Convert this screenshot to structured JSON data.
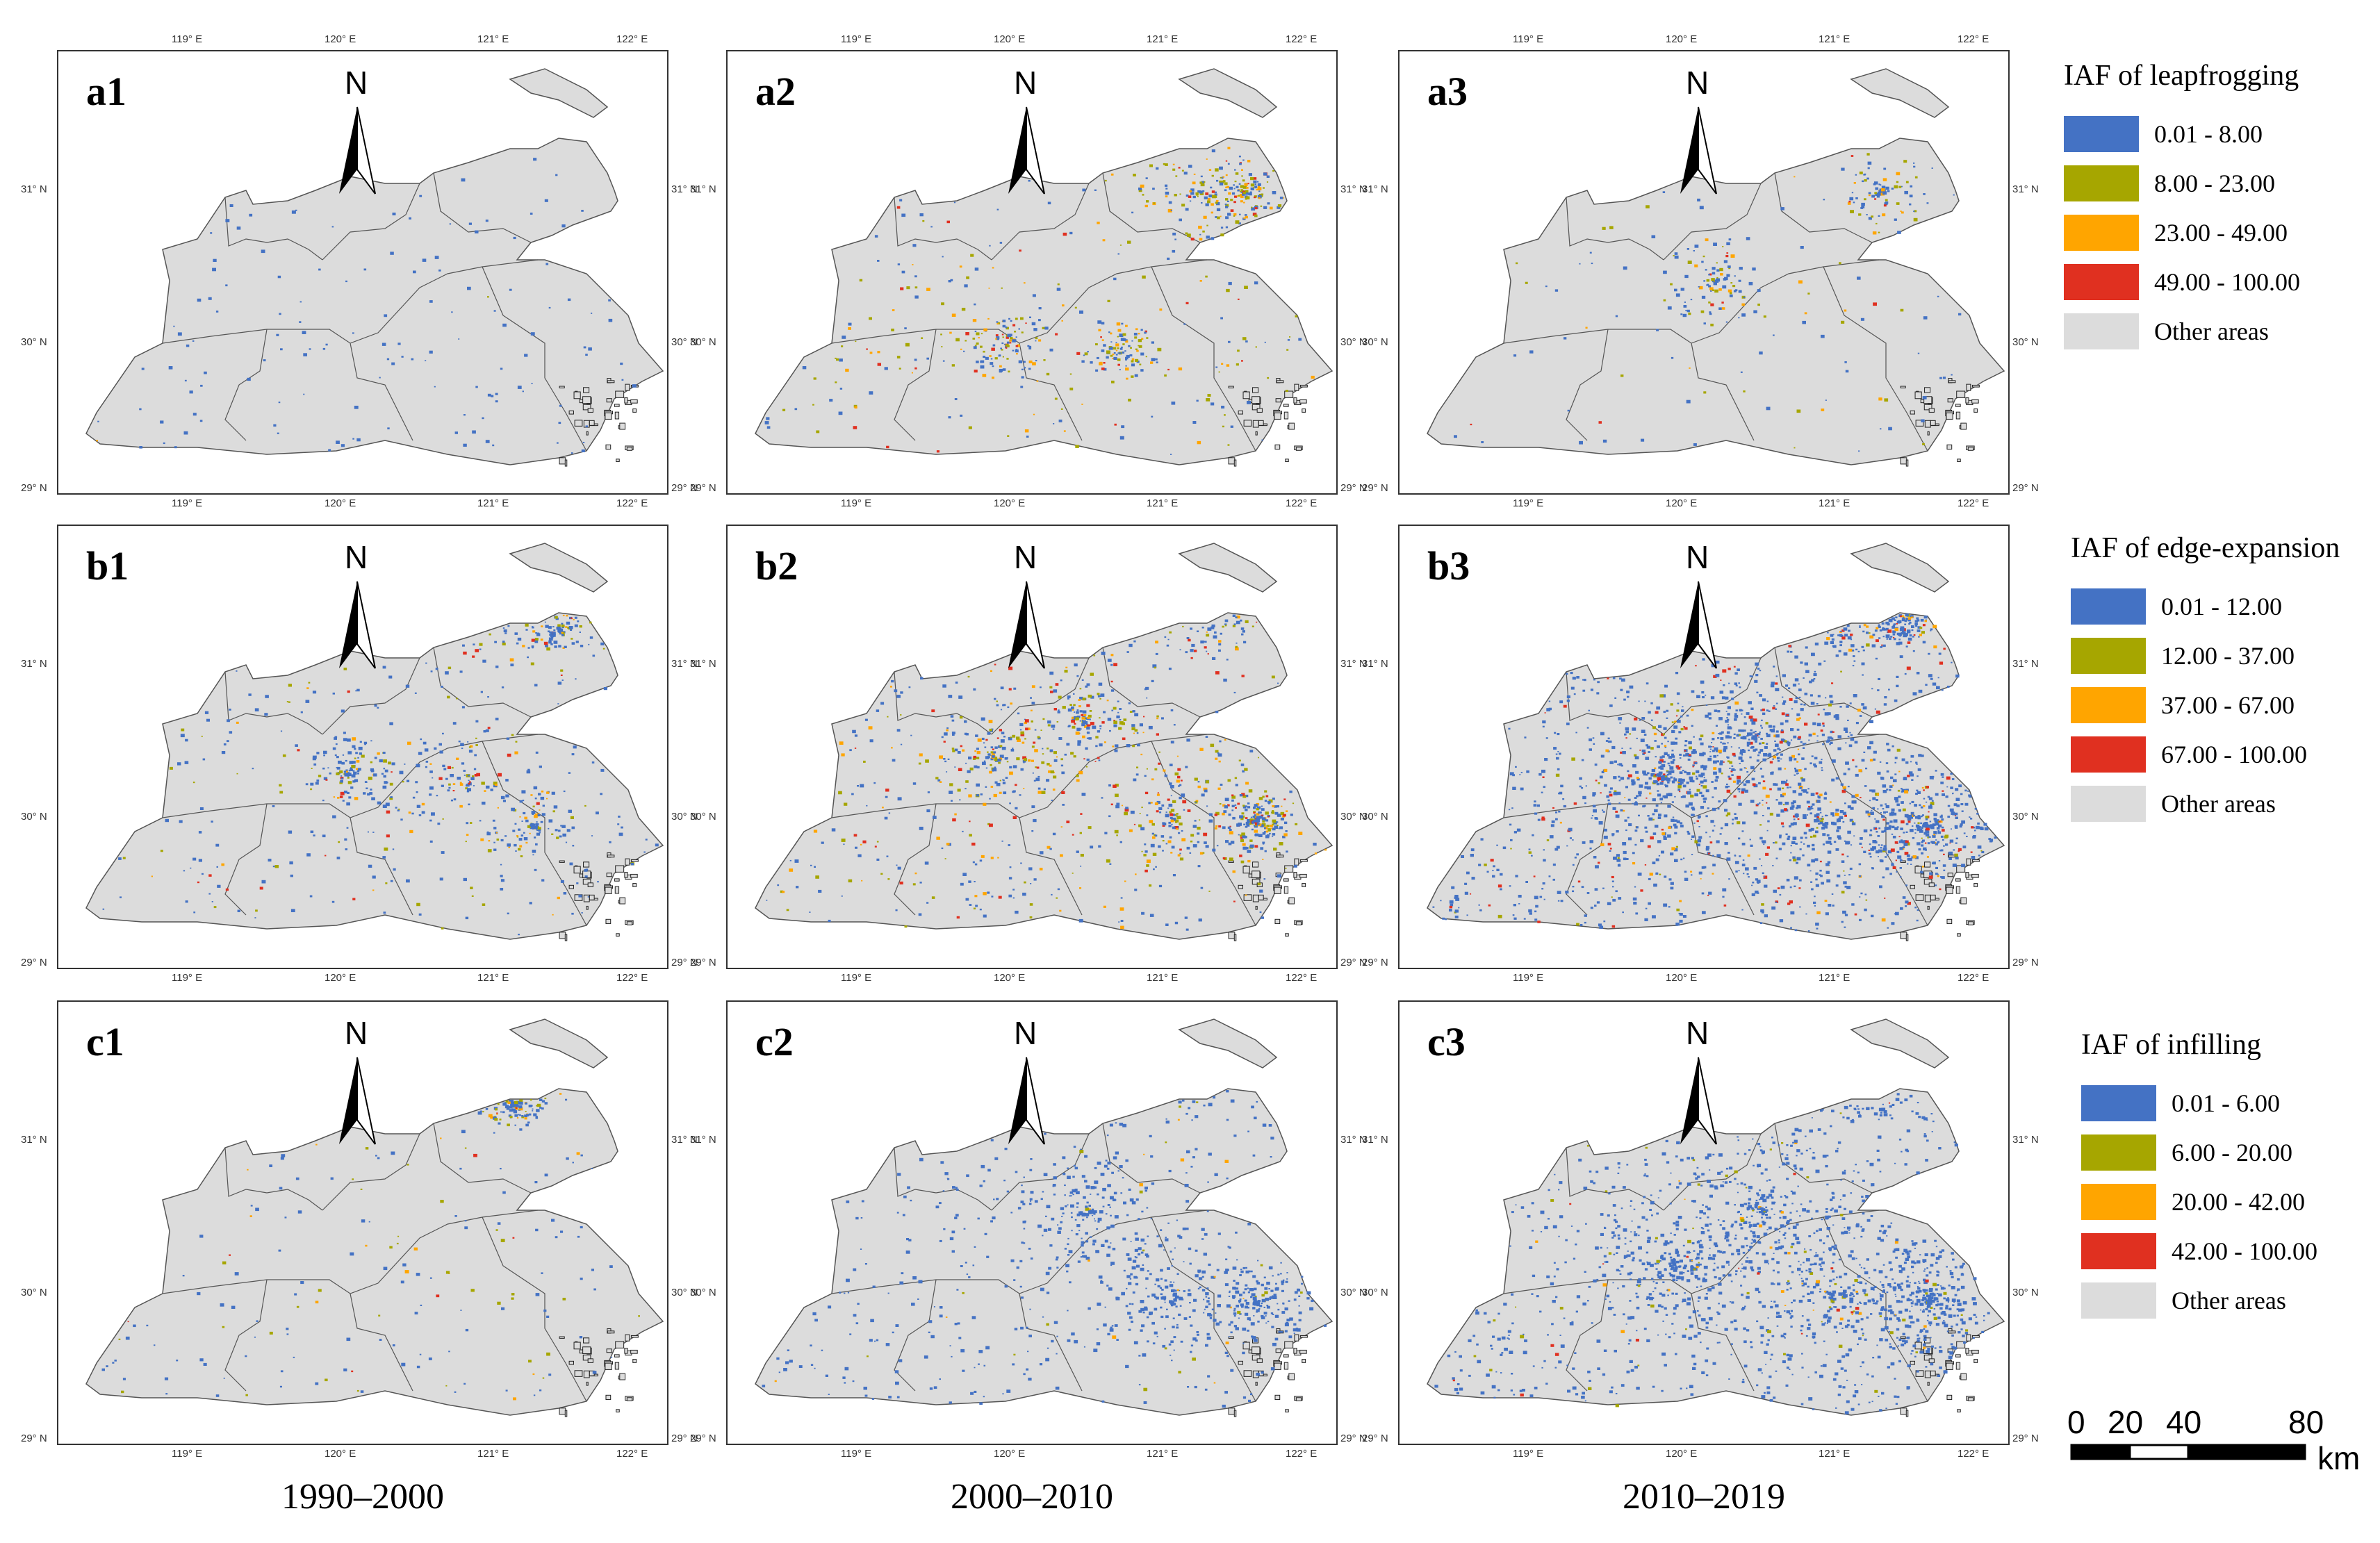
{
  "panels": [
    {
      "id": "a1",
      "label": "a1",
      "row": 0,
      "col": 0
    },
    {
      "id": "a2",
      "label": "a2",
      "row": 0,
      "col": 1
    },
    {
      "id": "a3",
      "label": "a3",
      "row": 0,
      "col": 2
    },
    {
      "id": "b1",
      "label": "b1",
      "row": 1,
      "col": 0
    },
    {
      "id": "b2",
      "label": "b2",
      "row": 1,
      "col": 1
    },
    {
      "id": "b3",
      "label": "b3",
      "row": 1,
      "col": 2
    },
    {
      "id": "c1",
      "label": "c1",
      "row": 2,
      "col": 0
    },
    {
      "id": "c2",
      "label": "c2",
      "row": 2,
      "col": 1
    },
    {
      "id": "c3",
      "label": "c3",
      "row": 2,
      "col": 2
    }
  ],
  "north_label": "N",
  "ticks": {
    "lon": [
      "119° E",
      "120° E",
      "121° E",
      "122° E"
    ],
    "lat": [
      "31° N",
      "30° N",
      "29° N"
    ]
  },
  "periods": [
    "1990–2000",
    "2000–2010",
    "2010–2019"
  ],
  "legends": [
    {
      "title": "IAF of leapfrogging",
      "items": [
        "0.01 - 8.00",
        "8.00 - 23.00",
        "23.00 - 49.00",
        "49.00 - 100.00",
        "Other areas"
      ]
    },
    {
      "title": "IAF of edge-expansion",
      "items": [
        "0.01 - 12.00",
        "12.00 - 37.00",
        "37.00 - 67.00",
        "67.00 - 100.00",
        "Other areas"
      ]
    },
    {
      "title": "IAF of infilling",
      "items": [
        "0.01 - 6.00",
        "6.00 - 20.00",
        "20.00 - 42.00",
        "42.00 - 100.00",
        "Other areas"
      ]
    }
  ],
  "colors": {
    "class1": "#4472c4",
    "class2": "#a6a600",
    "class3": "#ffa500",
    "class4": "#e03020",
    "other": "#dcdcdc",
    "land": "#dcdcdc",
    "border": "#555555"
  },
  "scale_bar": {
    "labels": [
      "0",
      "20",
      "40",
      "80"
    ],
    "unit": "km"
  }
}
